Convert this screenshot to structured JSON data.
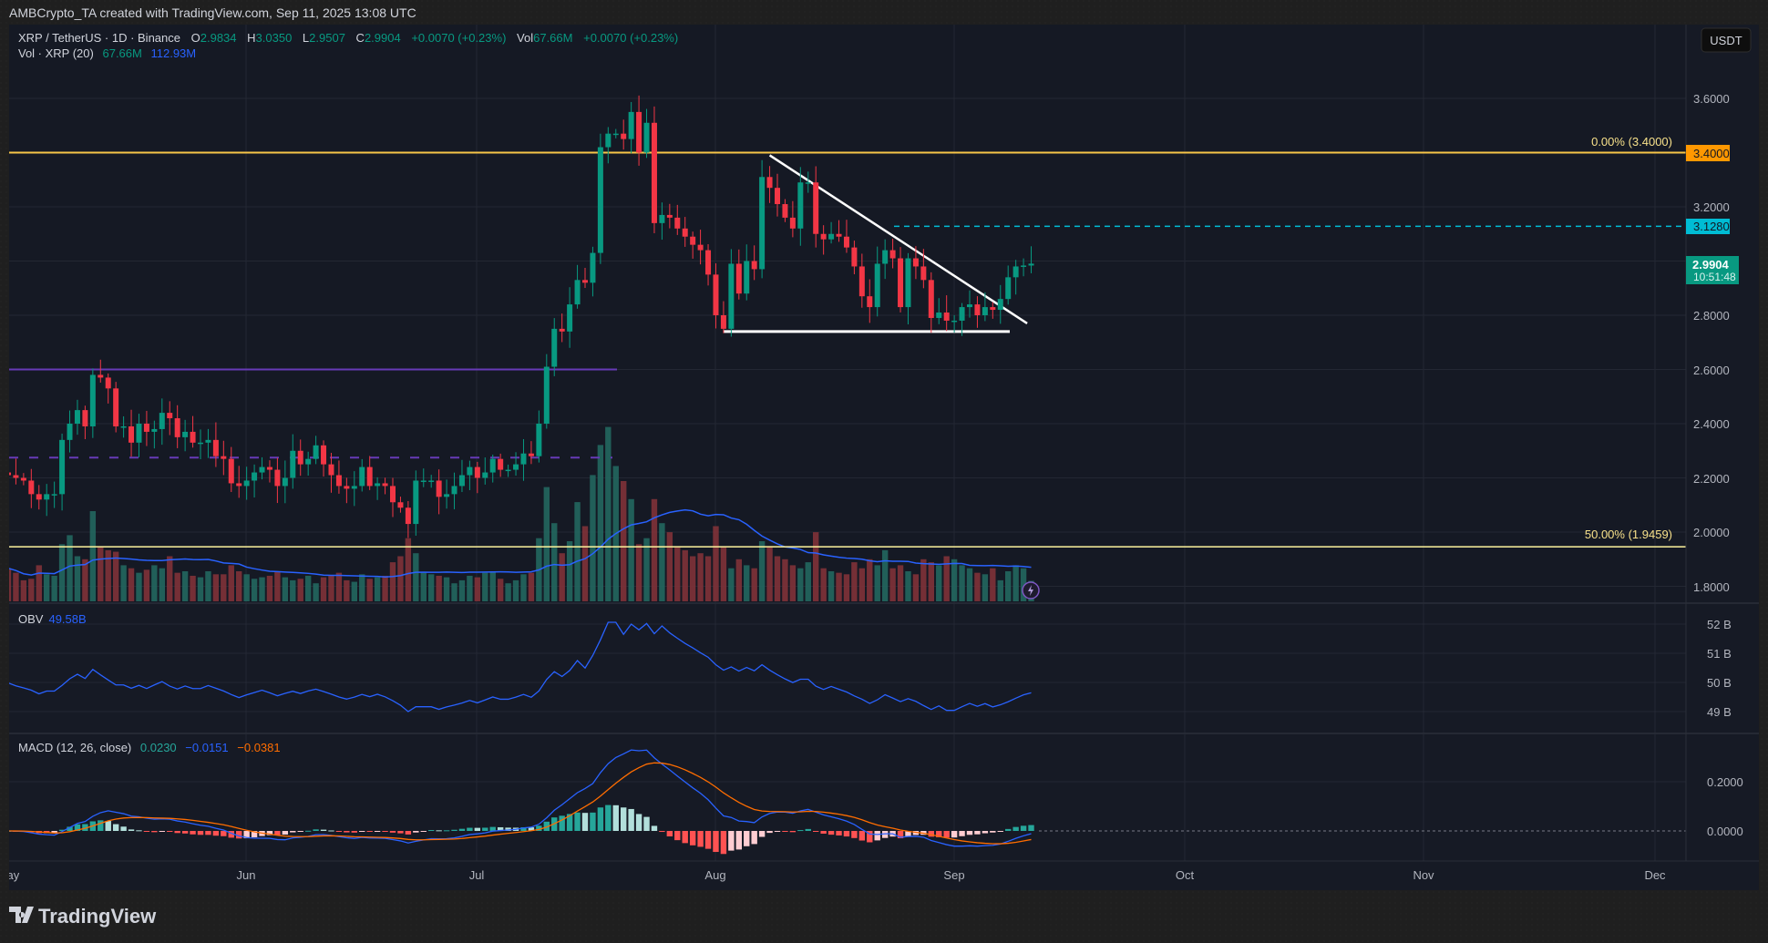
{
  "header": {
    "attribution": "AMBCrypto_TA created with TradingView.com, Sep 11, 2025 13:08 UTC"
  },
  "legend": {
    "symbol": "XRP / TetherUS · 1D · Binance",
    "o_label": "O",
    "o": "2.9834",
    "h_label": "H",
    "h": "3.0350",
    "l_label": "L",
    "l": "2.9507",
    "c_label": "C",
    "c": "2.9904",
    "change": "+0.0070 (+0.23%)",
    "vol_label": "Vol",
    "vol": "67.66M",
    "vol_change": "+0.0070 (+0.23%)",
    "vol_ma_label": "Vol · XRP (20)",
    "vol_value": "67.66M",
    "vol_ma_value": "112.93M"
  },
  "currency_button": "USDT",
  "obv": {
    "label": "OBV",
    "value": "49.58B"
  },
  "macd": {
    "label": "MACD (12, 26, close)",
    "hist": "0.0230",
    "macd": "−0.0151",
    "signal": "−0.0381"
  },
  "price_axis": {
    "ticks": [
      "3.6000",
      "3.2000",
      "2.8000",
      "2.6000",
      "2.4000",
      "2.2000",
      "2.0000",
      "1.8000"
    ],
    "fib_0_tag": "3.4000",
    "resistance_tag": "3.1280",
    "last_price": "2.9904",
    "countdown": "10:51:48"
  },
  "obv_axis": {
    "ticks": [
      "52 B",
      "51 B",
      "50 B",
      "49 B"
    ]
  },
  "macd_axis": {
    "ticks": [
      "0.2000",
      "0.0000"
    ]
  },
  "time_axis": {
    "labels": [
      "May",
      "Jun",
      "Jul",
      "Aug",
      "Sep",
      "Oct",
      "Nov",
      "Dec"
    ]
  },
  "annotations": {
    "fib_0": "0.00% (3.4000)",
    "fib_50": "50.00% (1.9459)"
  },
  "watermark": "TradingView",
  "colors": {
    "up": "#089981",
    "down": "#f23645",
    "fib0": "#f7c548",
    "fib50": "#fff59d",
    "purple": "#673ab7",
    "cyan": "#00bcd4",
    "macd": "#2962ff",
    "signal": "#ff6d00",
    "obv": "#2962ff"
  },
  "chart_data": {
    "type": "candlestick",
    "title": "XRP / TetherUS · 1D · Binance",
    "start_date": "2025-05-01",
    "end_date": "2025-09-11",
    "ylim": [
      1.75,
      3.72
    ],
    "close": [
      2.21,
      2.2,
      2.19,
      2.14,
      2.12,
      2.14,
      2.14,
      2.34,
      2.4,
      2.45,
      2.39,
      2.58,
      2.57,
      2.53,
      2.39,
      2.39,
      2.33,
      2.4,
      2.37,
      2.38,
      2.44,
      2.42,
      2.35,
      2.37,
      2.33,
      2.33,
      2.34,
      2.28,
      2.27,
      2.18,
      2.17,
      2.19,
      2.22,
      2.24,
      2.23,
      2.17,
      2.2,
      2.3,
      2.25,
      2.27,
      2.32,
      2.25,
      2.21,
      2.17,
      2.16,
      2.17,
      2.24,
      2.17,
      2.18,
      2.17,
      2.11,
      2.09,
      2.03,
      2.19,
      2.19,
      2.19,
      2.13,
      2.14,
      2.17,
      2.21,
      2.24,
      2.2,
      2.22,
      2.27,
      2.23,
      2.23,
      2.25,
      2.29,
      2.28,
      2.4,
      2.61,
      2.75,
      2.74,
      2.84,
      2.93,
      2.92,
      3.03,
      3.42,
      3.47,
      3.47,
      3.45,
      3.55,
      3.4,
      3.51,
      3.14,
      3.17,
      3.16,
      3.12,
      3.09,
      3.06,
      3.04,
      2.95,
      2.8,
      2.75,
      2.99,
      2.88,
      3.0,
      2.97,
      3.31,
      3.27,
      3.21,
      3.16,
      3.12,
      3.29,
      3.29,
      3.1,
      3.08,
      3.1,
      3.09,
      3.05,
      2.98,
      2.87,
      2.83,
      2.99,
      3.04,
      3.01,
      2.83,
      3.01,
      2.98,
      2.93,
      2.79,
      2.81,
      2.78,
      2.78,
      2.83,
      2.84,
      2.8,
      2.83,
      2.82,
      2.86,
      2.94,
      2.98,
      2.9834,
      2.9904
    ],
    "volume_millions": [
      110,
      95,
      70,
      75,
      120,
      90,
      85,
      190,
      220,
      150,
      140,
      300,
      180,
      170,
      165,
      120,
      110,
      95,
      105,
      120,
      110,
      150,
      95,
      100,
      85,
      80,
      100,
      90,
      90,
      120,
      100,
      90,
      75,
      80,
      85,
      100,
      80,
      70,
      75,
      85,
      60,
      80,
      85,
      95,
      70,
      65,
      90,
      75,
      80,
      85,
      130,
      150,
      210,
      160,
      95,
      90,
      85,
      80,
      60,
      70,
      85,
      80,
      95,
      100,
      75,
      60,
      70,
      90,
      95,
      210,
      380,
      260,
      160,
      200,
      330,
      250,
      420,
      520,
      580,
      450,
      400,
      340,
      190,
      210,
      340,
      260,
      230,
      180,
      170,
      150,
      160,
      150,
      250,
      180,
      110,
      140,
      120,
      110,
      200,
      180,
      150,
      140,
      120,
      110,
      130,
      230,
      110,
      100,
      95,
      90,
      130,
      110,
      140,
      120,
      170,
      110,
      120,
      100,
      90,
      140,
      130,
      120,
      150,
      140,
      120,
      110,
      95,
      90,
      110,
      70,
      100,
      120,
      110,
      68
    ],
    "levels": {
      "fib_0": 3.4,
      "fib_50": 1.9459,
      "resistance": 3.128,
      "purple_solid": 2.6,
      "purple_dashed": 2.275,
      "support": 2.74
    },
    "trendline": {
      "from": {
        "date": "2025-08-08",
        "price": 3.39
      },
      "to": {
        "date": "2025-09-10",
        "price": 2.77
      }
    },
    "obv_last_billions": 49.58,
    "obv_ylim": [
      48.7,
      52.8
    ],
    "macd_ylim": [
      -0.13,
      0.33
    ]
  }
}
